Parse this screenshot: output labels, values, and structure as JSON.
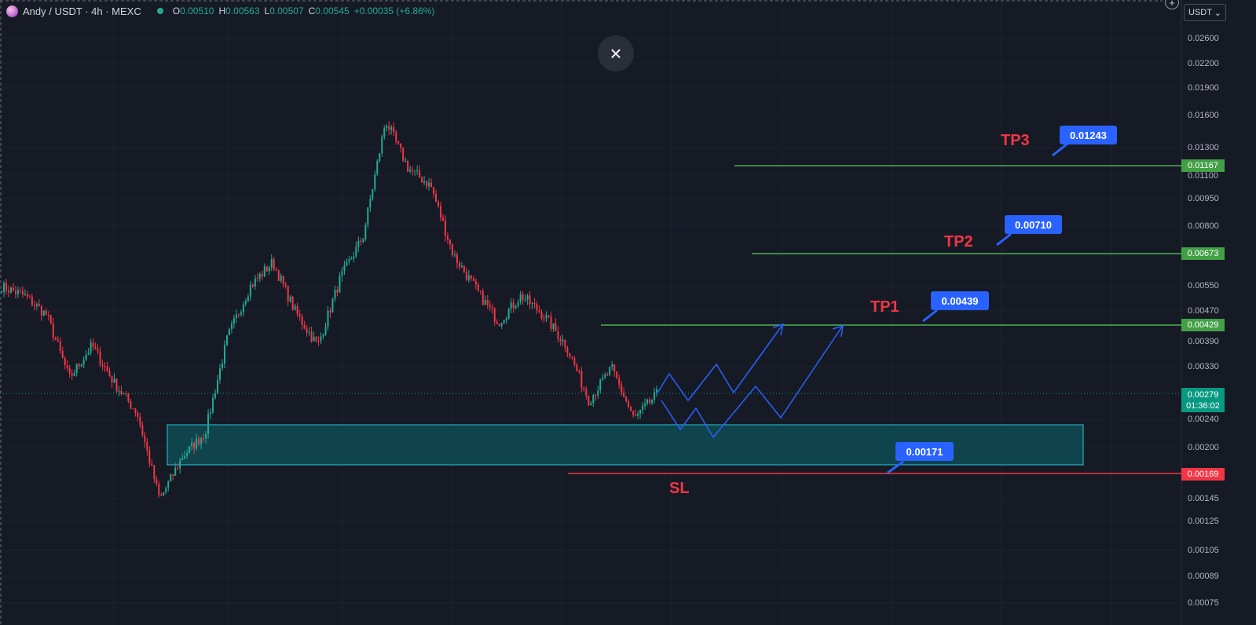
{
  "header": {
    "title": "Andy / USDT · 4h · MEXC",
    "ohlc": [
      {
        "k": "O",
        "v": "0.00510"
      },
      {
        "k": "H",
        "v": "0.00563"
      },
      {
        "k": "L",
        "v": "0.00507"
      },
      {
        "k": "C",
        "v": "0.00545"
      },
      {
        "k": "",
        "v": "+0.00035 (+6.86%)"
      }
    ]
  },
  "controls": {
    "close_symbol": "×",
    "plus_symbol": "+",
    "currency": "USDT",
    "currency_caret": "⌄"
  },
  "colors": {
    "background": "#161a25",
    "bull": "#22ab94",
    "bear": "#f23645",
    "tp_line": "#4caf50",
    "sl_line": "#f23645",
    "projection": "#2962ff",
    "zone_fill": "#0f4c55",
    "zone_border": "#26c6da"
  },
  "price_axis": {
    "ticks": [
      "0.02600",
      "0.02200",
      "0.01900",
      "0.01600",
      "0.01300",
      "0.01100",
      "0.00950",
      "0.00800",
      "0.00550",
      "0.00470",
      "0.00390",
      "0.00330",
      "0.00240",
      "0.00200",
      "0.00145",
      "0.00125",
      "0.00105",
      "0.00089",
      "0.00075"
    ],
    "current_price": "0.00279",
    "countdown": "01:36:02"
  },
  "levels": {
    "tp3": {
      "label": "TP3",
      "price": "0.01167",
      "target": "0.01243"
    },
    "tp2": {
      "label": "TP2",
      "price": "0.00673",
      "target": "0.00710"
    },
    "tp1": {
      "label": "TP1",
      "price": "0.00429",
      "target": "0.00439"
    },
    "sl": {
      "label": "SL",
      "price": "0.00169",
      "target": "0.00171"
    }
  },
  "chart_data": {
    "type": "candlestick",
    "title": "Andy / USDT · 4h · MEXC",
    "y_scale": "log",
    "ylim": [
      0.00075,
      0.026
    ],
    "last_close": 0.00279,
    "approx_path": [
      0.0055,
      0.0052,
      0.0046,
      0.0031,
      0.0038,
      0.003,
      0.0025,
      0.00145,
      0.0019,
      0.0022,
      0.004,
      0.0055,
      0.0064,
      0.0047,
      0.0038,
      0.0058,
      0.0075,
      0.0155,
      0.0115,
      0.0103,
      0.0067,
      0.0054,
      0.0044,
      0.0052,
      0.0046,
      0.0038,
      0.0027,
      0.0033,
      0.0024,
      0.0028
    ],
    "support_zone": [
      0.00178,
      0.00235
    ],
    "levels": {
      "tp3": 0.01167,
      "tp2": 0.00673,
      "tp1": 0.00429,
      "sl": 0.00169
    }
  }
}
